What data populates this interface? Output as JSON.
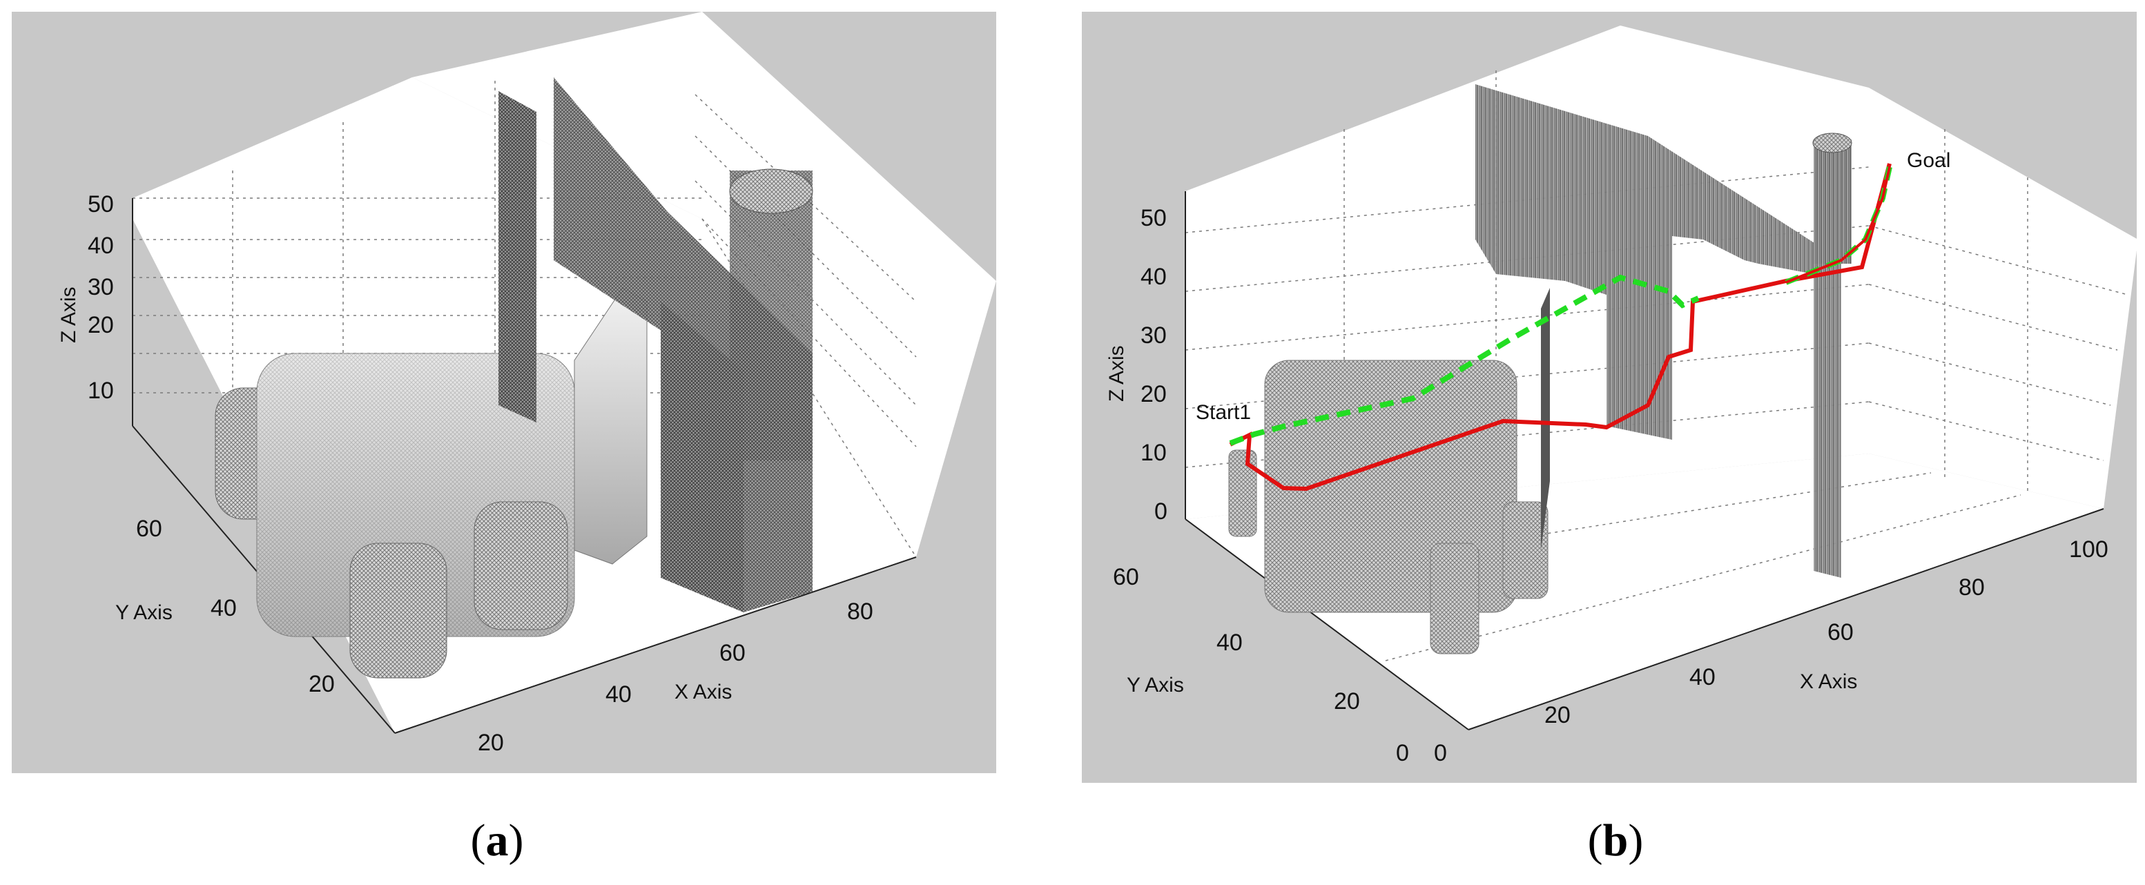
{
  "figure": {
    "caption_a": "a",
    "caption_b": "b"
  },
  "chart_data": [
    {
      "type": "scatter",
      "title": "",
      "xlabel": "X Axis",
      "ylabel": "Y Axis",
      "zlabel": "Z Axis",
      "x_ticks": [
        20,
        40,
        60,
        80
      ],
      "y_ticks": [
        20,
        40,
        60
      ],
      "z_ticks": [
        10,
        20,
        30,
        40,
        50
      ],
      "grid": true,
      "background": "#c8c8c8",
      "series": []
    },
    {
      "type": "line",
      "title": "",
      "xlabel": "X Axis",
      "ylabel": "Y Axis",
      "zlabel": "Z Axis",
      "x_ticks": [
        0,
        20,
        40,
        60,
        80,
        100
      ],
      "y_ticks": [
        0,
        20,
        40,
        60
      ],
      "z_ticks": [
        0,
        10,
        20,
        30,
        40,
        50
      ],
      "grid": true,
      "background": "#c8c8c8",
      "annotations": [
        "Start1",
        "Goal"
      ],
      "series": [
        {
          "color": "#e01010",
          "style": "solid"
        },
        {
          "color": "#22dd22",
          "style": "dashed"
        }
      ]
    }
  ]
}
